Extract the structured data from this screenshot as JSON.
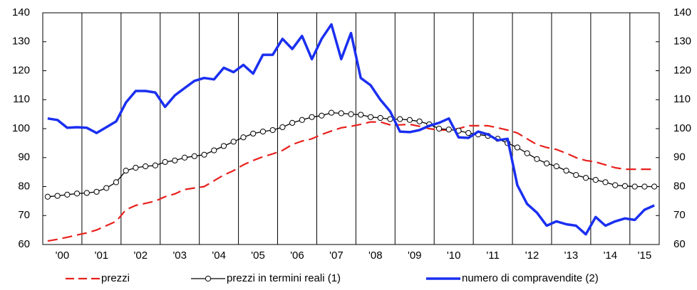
{
  "chart_data": {
    "type": "line",
    "categories": [
      "'00",
      null,
      null,
      null,
      "'01",
      null,
      null,
      null,
      "'02",
      null,
      null,
      null,
      "'03",
      null,
      null,
      null,
      "'04",
      null,
      null,
      null,
      "'05",
      null,
      null,
      null,
      "'06",
      null,
      null,
      null,
      "'07",
      null,
      null,
      null,
      "'08",
      null,
      null,
      null,
      "'09",
      null,
      null,
      null,
      "'10",
      null,
      null,
      null,
      "'11",
      null,
      null,
      null,
      "'12",
      null,
      null,
      null,
      "'13",
      null,
      null,
      null,
      "'14",
      null,
      null,
      null,
      "'15",
      null,
      null
    ],
    "series": [
      {
        "name": "prezzi",
        "color": "#e8201c",
        "style": "dashed",
        "values": [
          61.2,
          61.8,
          62.5,
          63.3,
          64,
          65,
          66.5,
          68,
          72,
          73.5,
          74.2,
          75,
          76.5,
          77.5,
          79,
          79.5,
          80,
          82,
          84,
          85.5,
          87.5,
          89,
          90.3,
          91.3,
          92.5,
          94.5,
          95.7,
          96.5,
          98,
          99.2,
          100.3,
          100.8,
          101.5,
          102.3,
          102.3,
          101.3,
          101.3,
          101.5,
          100.8,
          100,
          99.5,
          99.5,
          100,
          101,
          101,
          101,
          100.3,
          99.5,
          98.5,
          96.5,
          94.5,
          93.5,
          92.8,
          91.5,
          90,
          89,
          88.5,
          87.5,
          86.5,
          86,
          86,
          86,
          86
        ]
      },
      {
        "name": "prezzi in termini reali (1)",
        "color": "#000000",
        "style": "markers",
        "values": [
          76.5,
          76.8,
          77.2,
          77.6,
          77.8,
          78.2,
          79.5,
          81.5,
          85.5,
          86.5,
          87,
          87.3,
          88.5,
          89,
          90,
          90.5,
          91,
          92.5,
          94,
          95.5,
          97,
          98.3,
          99,
          99.5,
          100.5,
          102,
          103,
          104,
          104.5,
          105.5,
          105.3,
          105,
          104.8,
          104,
          103.7,
          103.3,
          103.3,
          103,
          102.5,
          101.5,
          100,
          99.7,
          99.3,
          98.5,
          98,
          97.5,
          96.5,
          95,
          93.5,
          91.5,
          89.5,
          88,
          87,
          85.5,
          84,
          83,
          82.3,
          81.5,
          80.5,
          80.2,
          80,
          80,
          80
        ]
      },
      {
        "name": "numero di compravendite (2)",
        "color": "#1a2ff0",
        "style": "thick",
        "values": [
          103.5,
          103,
          100.3,
          100.5,
          100.3,
          98.5,
          100.5,
          102.5,
          109,
          113,
          113,
          112.5,
          107.5,
          111.5,
          114,
          116.5,
          117.5,
          117,
          121,
          119.5,
          122,
          119,
          125.5,
          125.5,
          131,
          127.5,
          132,
          124,
          131,
          136,
          124,
          133,
          117.5,
          115,
          110,
          106,
          99,
          98.8,
          99.5,
          101,
          102,
          103.5,
          97,
          96.8,
          99,
          98,
          96,
          96.5,
          80.5,
          74,
          71,
          66.5,
          68,
          67,
          66.5,
          63.5,
          69.5,
          66.5,
          68,
          69,
          68.5,
          72,
          73.5
        ]
      }
    ],
    "ylim": [
      60,
      140
    ],
    "yticks": [
      60,
      70,
      80,
      90,
      100,
      110,
      120,
      130,
      140
    ],
    "y2lim": [
      60,
      140
    ],
    "y2ticks": [
      60,
      70,
      80,
      90,
      100,
      110,
      120,
      130,
      140
    ],
    "legend": "bottom"
  }
}
